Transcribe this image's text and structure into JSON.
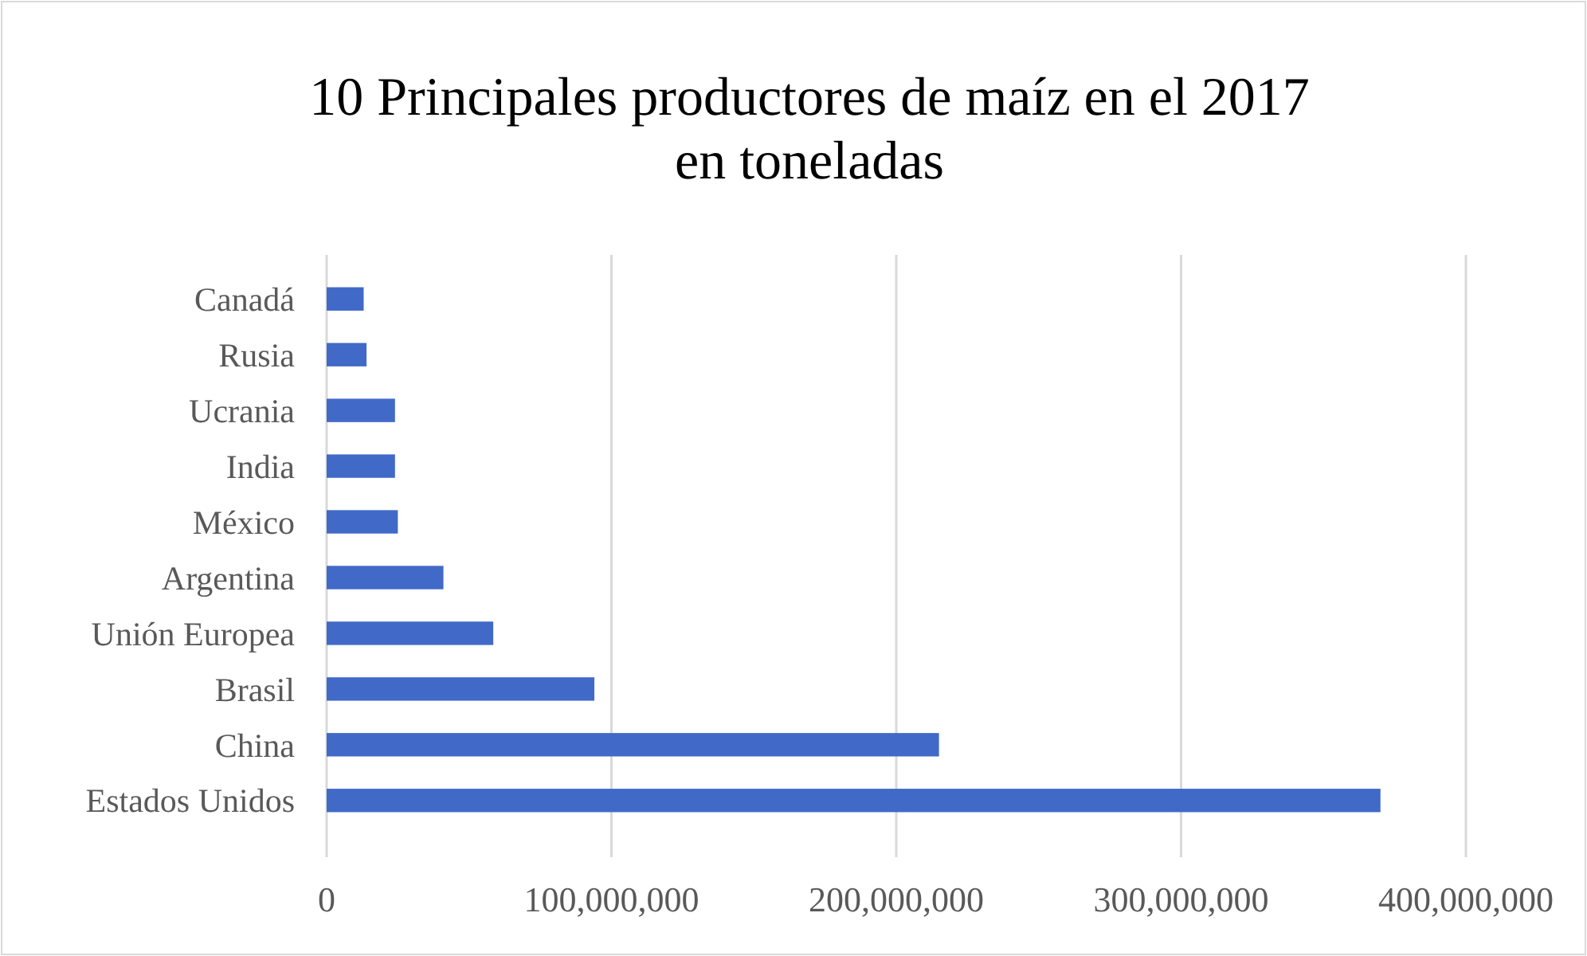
{
  "chart_data": {
    "type": "bar",
    "orientation": "horizontal",
    "title": "10 Principales productores de maíz en el 2017\nen toneladas",
    "categories": [
      "Canadá",
      "Rusia",
      "Ucrania",
      "India",
      "México",
      "Argentina",
      "Unión Europea",
      "Brasil",
      "China",
      "Estados Unidos"
    ],
    "values": [
      13000000,
      14000000,
      24000000,
      24000000,
      25000000,
      41000000,
      58500000,
      94000000,
      215000000,
      370000000
    ],
    "color": "#4169c8",
    "xlim": [
      0,
      400000000
    ],
    "xticks": [
      {
        "value": 0,
        "label": "0"
      },
      {
        "value": 100000000,
        "label": "100,000,000"
      },
      {
        "value": 200000000,
        "label": "200,000,000"
      },
      {
        "value": 300000000,
        "label": "300,000,000"
      },
      {
        "value": 400000000,
        "label": "400,000,000"
      }
    ],
    "grid": "x"
  }
}
